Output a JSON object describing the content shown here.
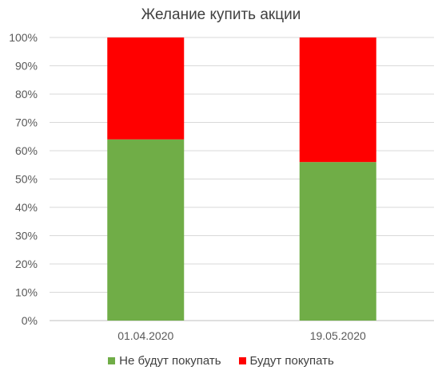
{
  "chart_data": {
    "type": "bar",
    "stacked": true,
    "percent": true,
    "title": "Желание купить акции",
    "categories": [
      "01.04.2020",
      "19.05.2020"
    ],
    "series": [
      {
        "name": "Не будут покупать",
        "values": [
          64,
          56
        ],
        "color": "#70ad47"
      },
      {
        "name": "Будут покупать",
        "values": [
          36,
          44
        ],
        "color": "#ff0000"
      }
    ],
    "ylim": [
      0,
      100
    ],
    "yticks": [
      "0%",
      "10%",
      "20%",
      "30%",
      "40%",
      "50%",
      "60%",
      "70%",
      "80%",
      "90%",
      "100%"
    ],
    "grid": true,
    "legend_position": "bottom"
  }
}
